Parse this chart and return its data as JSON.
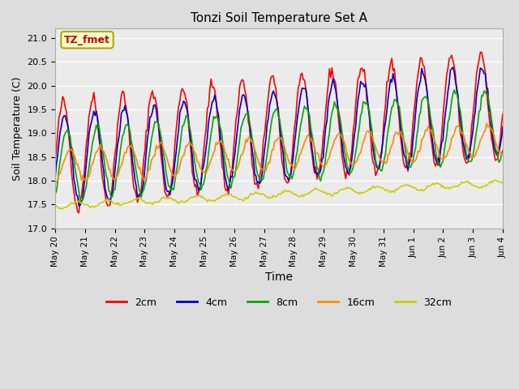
{
  "title": "Tonzi Soil Temperature Set A",
  "xlabel": "Time",
  "ylabel": "Soil Temperature (C)",
  "ylim": [
    17.0,
    21.2
  ],
  "yticks": [
    17.0,
    17.5,
    18.0,
    18.5,
    19.0,
    19.5,
    20.0,
    20.5,
    21.0
  ],
  "colors": {
    "2cm": "#ff0000",
    "4cm": "#0000cc",
    "8cm": "#00aa00",
    "16cm": "#ff8800",
    "32cm": "#cccc00"
  },
  "legend_labels": [
    "2cm",
    "4cm",
    "8cm",
    "16cm",
    "32cm"
  ],
  "annotation_text": "TZ_fmet",
  "annotation_color": "#cc0000",
  "annotation_bg": "#ffffcc",
  "annotation_edge": "#aaaa00",
  "fig_bg": "#dddddd",
  "plot_bg": "#ebebeb",
  "linewidth": 1.2,
  "xtick_labels": [
    "May 20",
    "May 21",
    "May 22",
    "May 23",
    "May 24",
    "May 25",
    "May 26",
    "May 27",
    "May 28",
    "May 29",
    "May 30",
    "May 31",
    "Jun 1",
    "Jun 2",
    "Jun 3",
    "Jun 4"
  ],
  "xtick_positions": [
    0,
    1,
    2,
    3,
    4,
    5,
    6,
    7,
    8,
    9,
    10,
    11,
    12,
    13,
    14,
    15
  ],
  "n_days": 15,
  "xlim": [
    0,
    15
  ]
}
